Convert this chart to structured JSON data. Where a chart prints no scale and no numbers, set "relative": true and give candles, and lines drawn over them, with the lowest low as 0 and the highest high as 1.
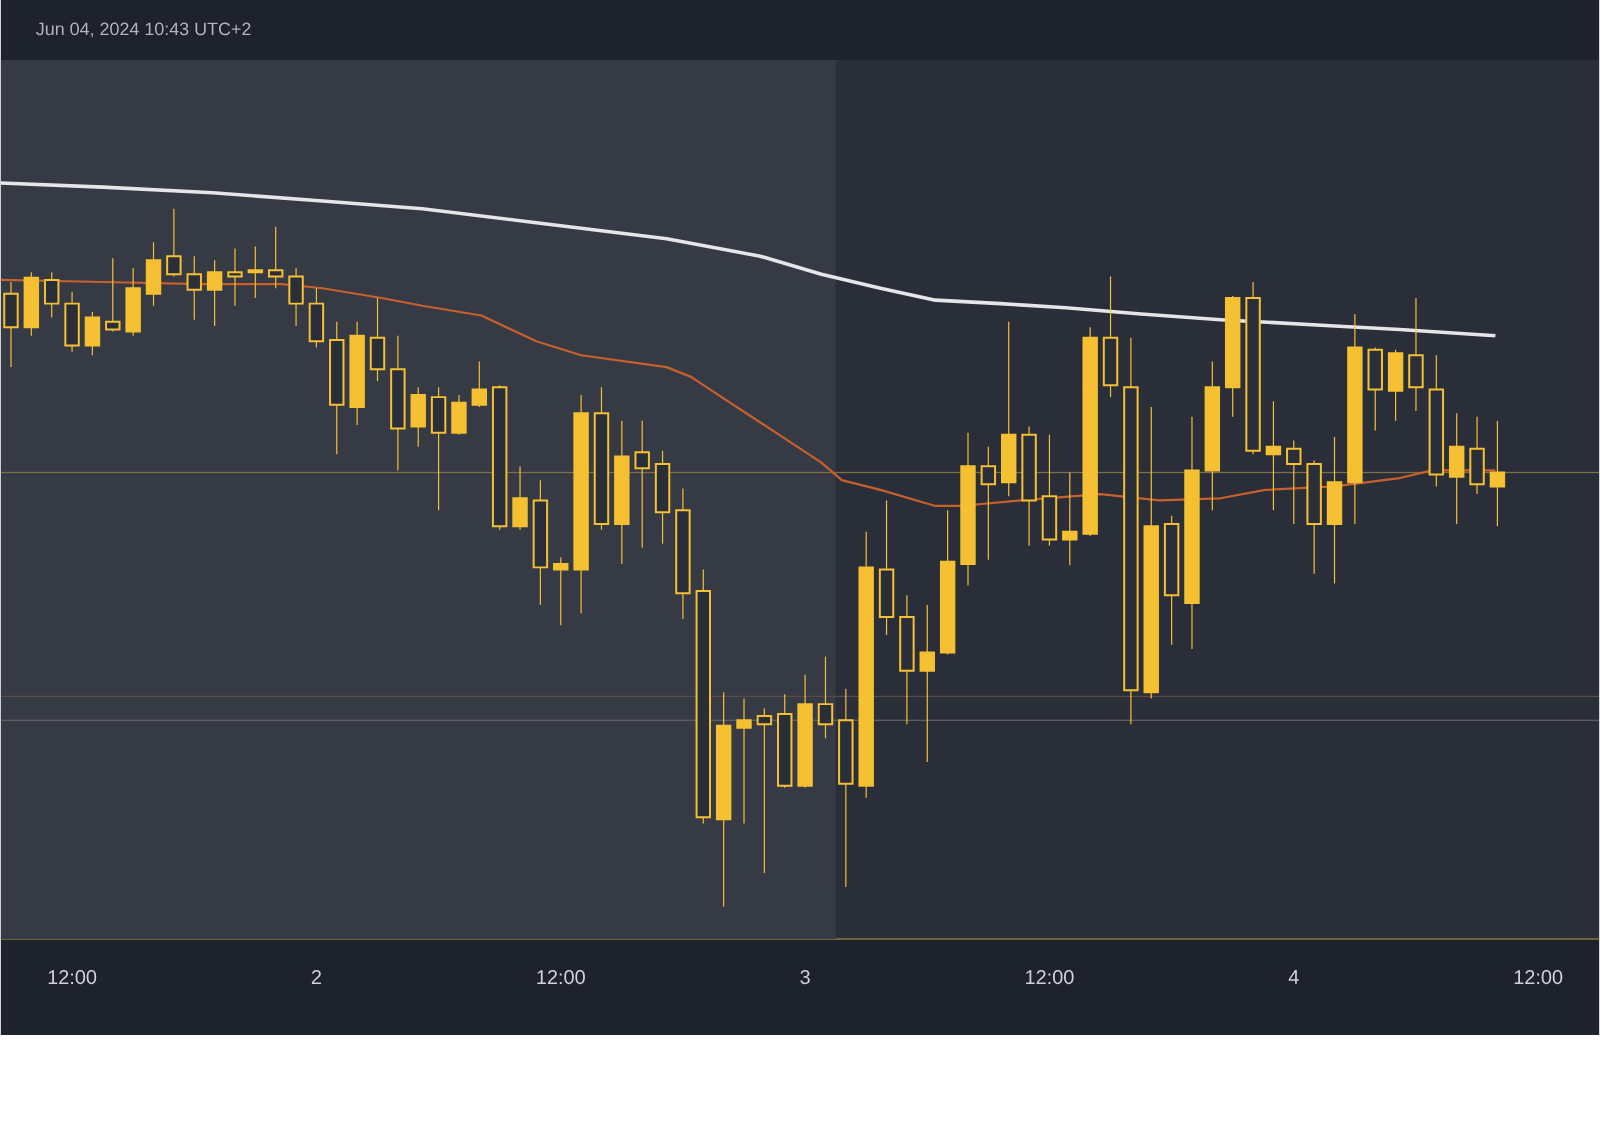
{
  "chart_data": {
    "type": "candlestick",
    "relative": true,
    "color": "#f5c031",
    "annotations": [
      "Jun 04, 2024 10:43 UTC+2"
    ],
    "x": [
      "2024-06-01T09:00",
      "2024-06-01T10:00",
      "2024-06-01T11:00",
      "2024-06-01T12:00",
      "2024-06-01T13:00",
      "2024-06-01T14:00",
      "2024-06-01T15:00",
      "2024-06-01T16:00",
      "2024-06-01T17:00",
      "2024-06-01T18:00",
      "2024-06-01T19:00",
      "2024-06-01T20:00",
      "2024-06-01T21:00",
      "2024-06-01T22:00",
      "2024-06-01T23:00",
      "2024-06-02T00:00",
      "2024-06-02T01:00",
      "2024-06-02T02:00",
      "2024-06-02T03:00",
      "2024-06-02T04:00",
      "2024-06-02T05:00",
      "2024-06-02T06:00",
      "2024-06-02T07:00",
      "2024-06-02T08:00",
      "2024-06-02T09:00",
      "2024-06-02T10:00",
      "2024-06-02T11:00",
      "2024-06-02T12:00",
      "2024-06-02T13:00",
      "2024-06-02T14:00",
      "2024-06-02T15:00",
      "2024-06-02T16:00",
      "2024-06-02T17:00",
      "2024-06-02T18:00",
      "2024-06-02T19:00",
      "2024-06-02T20:00",
      "2024-06-02T21:00",
      "2024-06-02T22:00",
      "2024-06-02T23:00",
      "2024-06-03T00:00",
      "2024-06-03T01:00",
      "2024-06-03T02:00",
      "2024-06-03T03:00",
      "2024-06-03T04:00",
      "2024-06-03T05:00",
      "2024-06-03T06:00",
      "2024-06-03T07:00",
      "2024-06-03T08:00",
      "2024-06-03T09:00",
      "2024-06-03T10:00",
      "2024-06-03T11:00",
      "2024-06-03T12:00",
      "2024-06-03T13:00",
      "2024-06-03T14:00",
      "2024-06-03T15:00",
      "2024-06-03T16:00",
      "2024-06-03T17:00",
      "2024-06-03T18:00",
      "2024-06-03T19:00",
      "2024-06-03T20:00",
      "2024-06-03T21:00",
      "2024-06-03T22:00",
      "2024-06-03T23:00",
      "2024-06-04T00:00",
      "2024-06-04T01:00",
      "2024-06-04T02:00",
      "2024-06-04T03:00",
      "2024-06-04T04:00",
      "2024-06-04T05:00",
      "2024-06-04T06:00",
      "2024-06-04T07:00",
      "2024-06-04T08:00",
      "2024-06-04T09:00",
      "2024-06-04T10:00"
    ],
    "ohlc": [
      [
        0.878,
        0.895,
        0.773,
        0.83
      ],
      [
        0.83,
        0.909,
        0.818,
        0.901
      ],
      [
        0.898,
        0.909,
        0.844,
        0.864
      ],
      [
        0.864,
        0.881,
        0.795,
        0.804
      ],
      [
        0.804,
        0.852,
        0.79,
        0.844
      ],
      [
        0.838,
        0.929,
        0.824,
        0.827
      ],
      [
        0.824,
        0.915,
        0.818,
        0.886
      ],
      [
        0.878,
        0.952,
        0.861,
        0.926
      ],
      [
        0.932,
        1.0,
        0.903,
        0.906
      ],
      [
        0.906,
        0.932,
        0.841,
        0.884
      ],
      [
        0.884,
        0.926,
        0.832,
        0.909
      ],
      [
        0.909,
        0.943,
        0.861,
        0.903
      ],
      [
        0.909,
        0.946,
        0.872,
        0.912
      ],
      [
        0.912,
        0.974,
        0.886,
        0.903
      ],
      [
        0.903,
        0.915,
        0.832,
        0.864
      ],
      [
        0.864,
        0.886,
        0.801,
        0.81
      ],
      [
        0.812,
        0.838,
        0.648,
        0.719
      ],
      [
        0.716,
        0.838,
        0.69,
        0.818
      ],
      [
        0.815,
        0.872,
        0.753,
        0.77
      ],
      [
        0.77,
        0.818,
        0.625,
        0.685
      ],
      [
        0.688,
        0.744,
        0.659,
        0.733
      ],
      [
        0.73,
        0.744,
        0.568,
        0.679
      ],
      [
        0.679,
        0.733,
        0.676,
        0.722
      ],
      [
        0.719,
        0.781,
        0.716,
        0.741
      ],
      [
        0.744,
        0.747,
        0.54,
        0.545
      ],
      [
        0.545,
        0.631,
        0.54,
        0.585
      ],
      [
        0.582,
        0.611,
        0.432,
        0.486
      ],
      [
        0.483,
        0.5,
        0.403,
        0.491
      ],
      [
        0.483,
        0.733,
        0.42,
        0.707
      ],
      [
        0.707,
        0.744,
        0.54,
        0.548
      ],
      [
        0.548,
        0.696,
        0.491,
        0.645
      ],
      [
        0.651,
        0.696,
        0.514,
        0.628
      ],
      [
        0.634,
        0.653,
        0.52,
        0.565
      ],
      [
        0.568,
        0.599,
        0.412,
        0.449
      ],
      [
        0.452,
        0.483,
        0.119,
        0.128
      ],
      [
        0.125,
        0.307,
        0.0,
        0.259
      ],
      [
        0.256,
        0.298,
        0.119,
        0.267
      ],
      [
        0.273,
        0.284,
        0.048,
        0.261
      ],
      [
        0.276,
        0.304,
        0.17,
        0.173
      ],
      [
        0.173,
        0.332,
        0.17,
        0.29
      ],
      [
        0.29,
        0.358,
        0.241,
        0.261
      ],
      [
        0.267,
        0.312,
        0.028,
        0.176
      ],
      [
        0.173,
        0.537,
        0.156,
        0.486
      ],
      [
        0.483,
        0.582,
        0.389,
        0.415
      ],
      [
        0.415,
        0.446,
        0.261,
        0.338
      ],
      [
        0.338,
        0.432,
        0.207,
        0.364
      ],
      [
        0.364,
        0.568,
        0.361,
        0.494
      ],
      [
        0.491,
        0.679,
        0.46,
        0.631
      ],
      [
        0.631,
        0.659,
        0.497,
        0.605
      ],
      [
        0.608,
        0.838,
        0.588,
        0.676
      ],
      [
        0.676,
        0.688,
        0.517,
        0.582
      ],
      [
        0.588,
        0.676,
        0.517,
        0.526
      ],
      [
        0.526,
        0.622,
        0.489,
        0.537
      ],
      [
        0.534,
        0.83,
        0.531,
        0.815
      ],
      [
        0.815,
        0.903,
        0.73,
        0.747
      ],
      [
        0.744,
        0.815,
        0.261,
        0.31
      ],
      [
        0.307,
        0.716,
        0.298,
        0.545
      ],
      [
        0.548,
        0.56,
        0.375,
        0.446
      ],
      [
        0.435,
        0.702,
        0.369,
        0.625
      ],
      [
        0.625,
        0.781,
        0.568,
        0.744
      ],
      [
        0.744,
        0.875,
        0.702,
        0.872
      ],
      [
        0.872,
        0.895,
        0.648,
        0.653
      ],
      [
        0.648,
        0.724,
        0.568,
        0.659
      ],
      [
        0.656,
        0.668,
        0.548,
        0.634
      ],
      [
        0.634,
        0.639,
        0.477,
        0.548
      ],
      [
        0.548,
        0.673,
        0.463,
        0.608
      ],
      [
        0.608,
        0.849,
        0.548,
        0.801
      ],
      [
        0.798,
        0.801,
        0.682,
        0.741
      ],
      [
        0.739,
        0.798,
        0.696,
        0.793
      ],
      [
        0.79,
        0.872,
        0.71,
        0.744
      ],
      [
        0.741,
        0.79,
        0.602,
        0.619
      ],
      [
        0.616,
        0.707,
        0.548,
        0.659
      ],
      [
        0.656,
        0.702,
        0.591,
        0.605
      ],
      [
        0.602,
        0.696,
        0.545,
        0.622
      ]
    ],
    "series": [
      {
        "type": "line",
        "color": "#e6e6e6",
        "x": [
          "2024-06-01T08:30",
          "2024-06-01T13:30",
          "2024-06-01T18:54",
          "2024-06-02T00:18",
          "2024-06-02T05:12",
          "2024-06-02T10:48",
          "2024-06-02T17:12",
          "2024-06-02T21:48",
          "2024-06-03T00:48",
          "2024-06-03T03:42",
          "2024-06-03T06:24",
          "2024-06-03T09:36",
          "2024-06-03T12:48",
          "2024-06-03T16:30",
          "2024-06-03T20:24",
          "2024-06-04T02:00",
          "2024-06-04T05:12",
          "2024-06-04T09:54"
        ],
        "values": [
          1.037,
          1.031,
          1.023,
          1.011,
          1.0,
          0.98,
          0.957,
          0.932,
          0.906,
          0.886,
          0.869,
          0.864,
          0.858,
          0.849,
          0.841,
          0.832,
          0.827,
          0.818
        ]
      },
      {
        "type": "line",
        "color": "#c8602c",
        "x": [
          "2024-06-01T08:30",
          "2024-06-01T13:30",
          "2024-06-01T18:24",
          "2024-06-01T22:18",
          "2024-06-02T00:18",
          "2024-06-02T03:12",
          "2024-06-02T05:12",
          "2024-06-02T08:06",
          "2024-06-02T10:48",
          "2024-06-02T13:00",
          "2024-06-02T17:12",
          "2024-06-02T18:24",
          "2024-06-02T19:54",
          "2024-06-02T22:06",
          "2024-06-03T00:48",
          "2024-06-03T01:48",
          "2024-06-03T03:42",
          "2024-06-03T06:24",
          "2024-06-03T07:36",
          "2024-06-03T10:36",
          "2024-06-03T14:30",
          "2024-06-03T17:24",
          "2024-06-03T20:24",
          "2024-06-03T22:36",
          "2024-06-04T02:00",
          "2024-06-04T05:12",
          "2024-06-04T06:48",
          "2024-06-04T09:54"
        ],
        "values": [
          0.898,
          0.895,
          0.892,
          0.892,
          0.886,
          0.872,
          0.861,
          0.847,
          0.81,
          0.79,
          0.773,
          0.759,
          0.73,
          0.688,
          0.636,
          0.611,
          0.597,
          0.574,
          0.574,
          0.582,
          0.591,
          0.582,
          0.585,
          0.597,
          0.602,
          0.614,
          0.625,
          0.625
        ]
      }
    ],
    "xlim": [
      "2024-06-01T08:30",
      "2024-06-04T15:00"
    ],
    "xticks": [
      {
        "value": "2024-06-01T12:00",
        "label": "12:00"
      },
      {
        "value": "2024-06-02",
        "label": "2"
      },
      {
        "value": "2024-06-02T12:00",
        "label": "12:00"
      },
      {
        "value": "2024-06-03",
        "label": "3"
      },
      {
        "value": "2024-06-03T12:00",
        "label": "12:00"
      },
      {
        "value": "2024-06-04",
        "label": "4"
      },
      {
        "value": "2024-06-04T12:00",
        "label": "12:00"
      }
    ],
    "ref_lines": [
      {
        "axis": "y",
        "value": 0.622,
        "color": "#7d7046"
      },
      {
        "axis": "y",
        "value": 0.301,
        "color": "#5c4a4a"
      },
      {
        "axis": "y",
        "value": 0.267,
        "color": "#5e5e5e"
      }
    ],
    "bands": [
      {
        "axis": "x",
        "from": "2024-06-01T08:30",
        "to": "2024-06-03T01:30",
        "color": "#363a45"
      }
    ]
  }
}
